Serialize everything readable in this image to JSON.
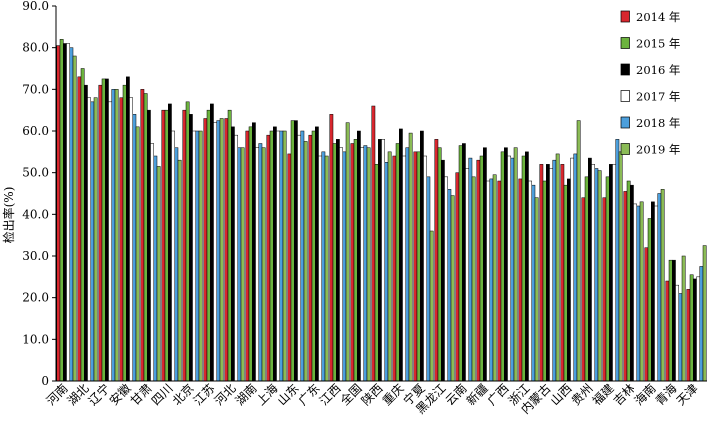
{
  "chart_data": {
    "type": "bar",
    "ylabel": "检出率(%)",
    "ylim": [
      0,
      90
    ],
    "yticks": [
      "0",
      "10.0",
      "20.0",
      "30.0",
      "40.0",
      "50.0",
      "60.0",
      "70.0",
      "80.0",
      "90.0"
    ],
    "grid": false,
    "legend_position": "top-right",
    "categories": [
      "河南",
      "湖北",
      "辽宁",
      "安徽",
      "甘肃",
      "四川",
      "北京",
      "江苏",
      "河北",
      "湖南",
      "上海",
      "山东",
      "广东",
      "江西",
      "全国",
      "陕西",
      "重庆",
      "宁夏",
      "黑龙江",
      "云南",
      "新疆",
      "广西",
      "浙江",
      "内蒙古",
      "山西",
      "贵州",
      "福建",
      "吉林",
      "海南",
      "青海",
      "天津"
    ],
    "series": [
      {
        "name": "2014 年",
        "color": "#d8272e",
        "values": [
          80.5,
          73.0,
          71.0,
          68.0,
          70.0,
          65.0,
          65.0,
          63.0,
          63.0,
          60.0,
          59.0,
          54.5,
          59.0,
          64.0,
          57.0,
          66.0,
          54.0,
          55.0,
          58.0,
          50.0,
          53.0,
          48.0,
          48.5,
          52.0,
          52.0,
          44.0,
          44.0,
          45.5,
          32.0,
          24.0,
          22.0
        ]
      },
      {
        "name": "2015 年",
        "color": "#6cb33e",
        "values": [
          82.0,
          75.0,
          72.5,
          71.0,
          69.0,
          65.0,
          67.0,
          65.0,
          65.0,
          61.0,
          60.0,
          62.5,
          60.0,
          57.0,
          58.0,
          52.0,
          57.0,
          55.0,
          56.0,
          56.5,
          54.0,
          55.0,
          54.0,
          48.0,
          47.0,
          49.0,
          49.0,
          48.0,
          39.0,
          29.0,
          25.5
        ]
      },
      {
        "name": "2016 年",
        "color": "#000000",
        "values": [
          81.0,
          71.0,
          72.5,
          73.0,
          65.0,
          66.5,
          64.0,
          66.5,
          61.0,
          62.0,
          61.0,
          62.5,
          61.0,
          58.0,
          60.0,
          58.0,
          60.5,
          60.0,
          53.0,
          57.0,
          56.0,
          56.0,
          55.0,
          52.0,
          48.5,
          53.5,
          52.0,
          47.0,
          43.0,
          29.0,
          24.5
        ]
      },
      {
        "name": "2017 年",
        "color": "#ffffff",
        "values": [
          81.0,
          68.0,
          67.0,
          68.0,
          57.0,
          60.0,
          60.0,
          62.0,
          59.0,
          56.0,
          60.0,
          59.0,
          54.0,
          56.0,
          56.0,
          58.0,
          54.0,
          54.0,
          49.0,
          51.0,
          48.0,
          54.0,
          48.0,
          51.0,
          53.5,
          52.0,
          52.0,
          42.5,
          42.0,
          23.0,
          25.0
        ]
      },
      {
        "name": "2018 年",
        "color": "#4c9fdc",
        "values": [
          80.0,
          67.0,
          70.0,
          64.0,
          54.0,
          56.0,
          60.0,
          62.5,
          56.0,
          57.0,
          60.0,
          60.0,
          55.0,
          55.0,
          56.5,
          52.5,
          56.0,
          49.0,
          46.0,
          53.5,
          48.5,
          53.5,
          47.0,
          53.0,
          54.5,
          51.0,
          58.0,
          42.0,
          45.0,
          21.0,
          27.5
        ]
      },
      {
        "name": "2019 年",
        "color": "#8bbb56",
        "values": [
          78.0,
          68.0,
          70.0,
          61.0,
          51.5,
          53.0,
          60.0,
          63.0,
          56.0,
          56.0,
          60.0,
          57.5,
          54.0,
          62.0,
          56.0,
          55.0,
          59.5,
          36.0,
          44.5,
          49.0,
          49.5,
          56.0,
          44.0,
          54.5,
          62.5,
          50.5,
          55.0,
          43.0,
          46.0,
          30.0,
          32.5
        ]
      }
    ]
  }
}
